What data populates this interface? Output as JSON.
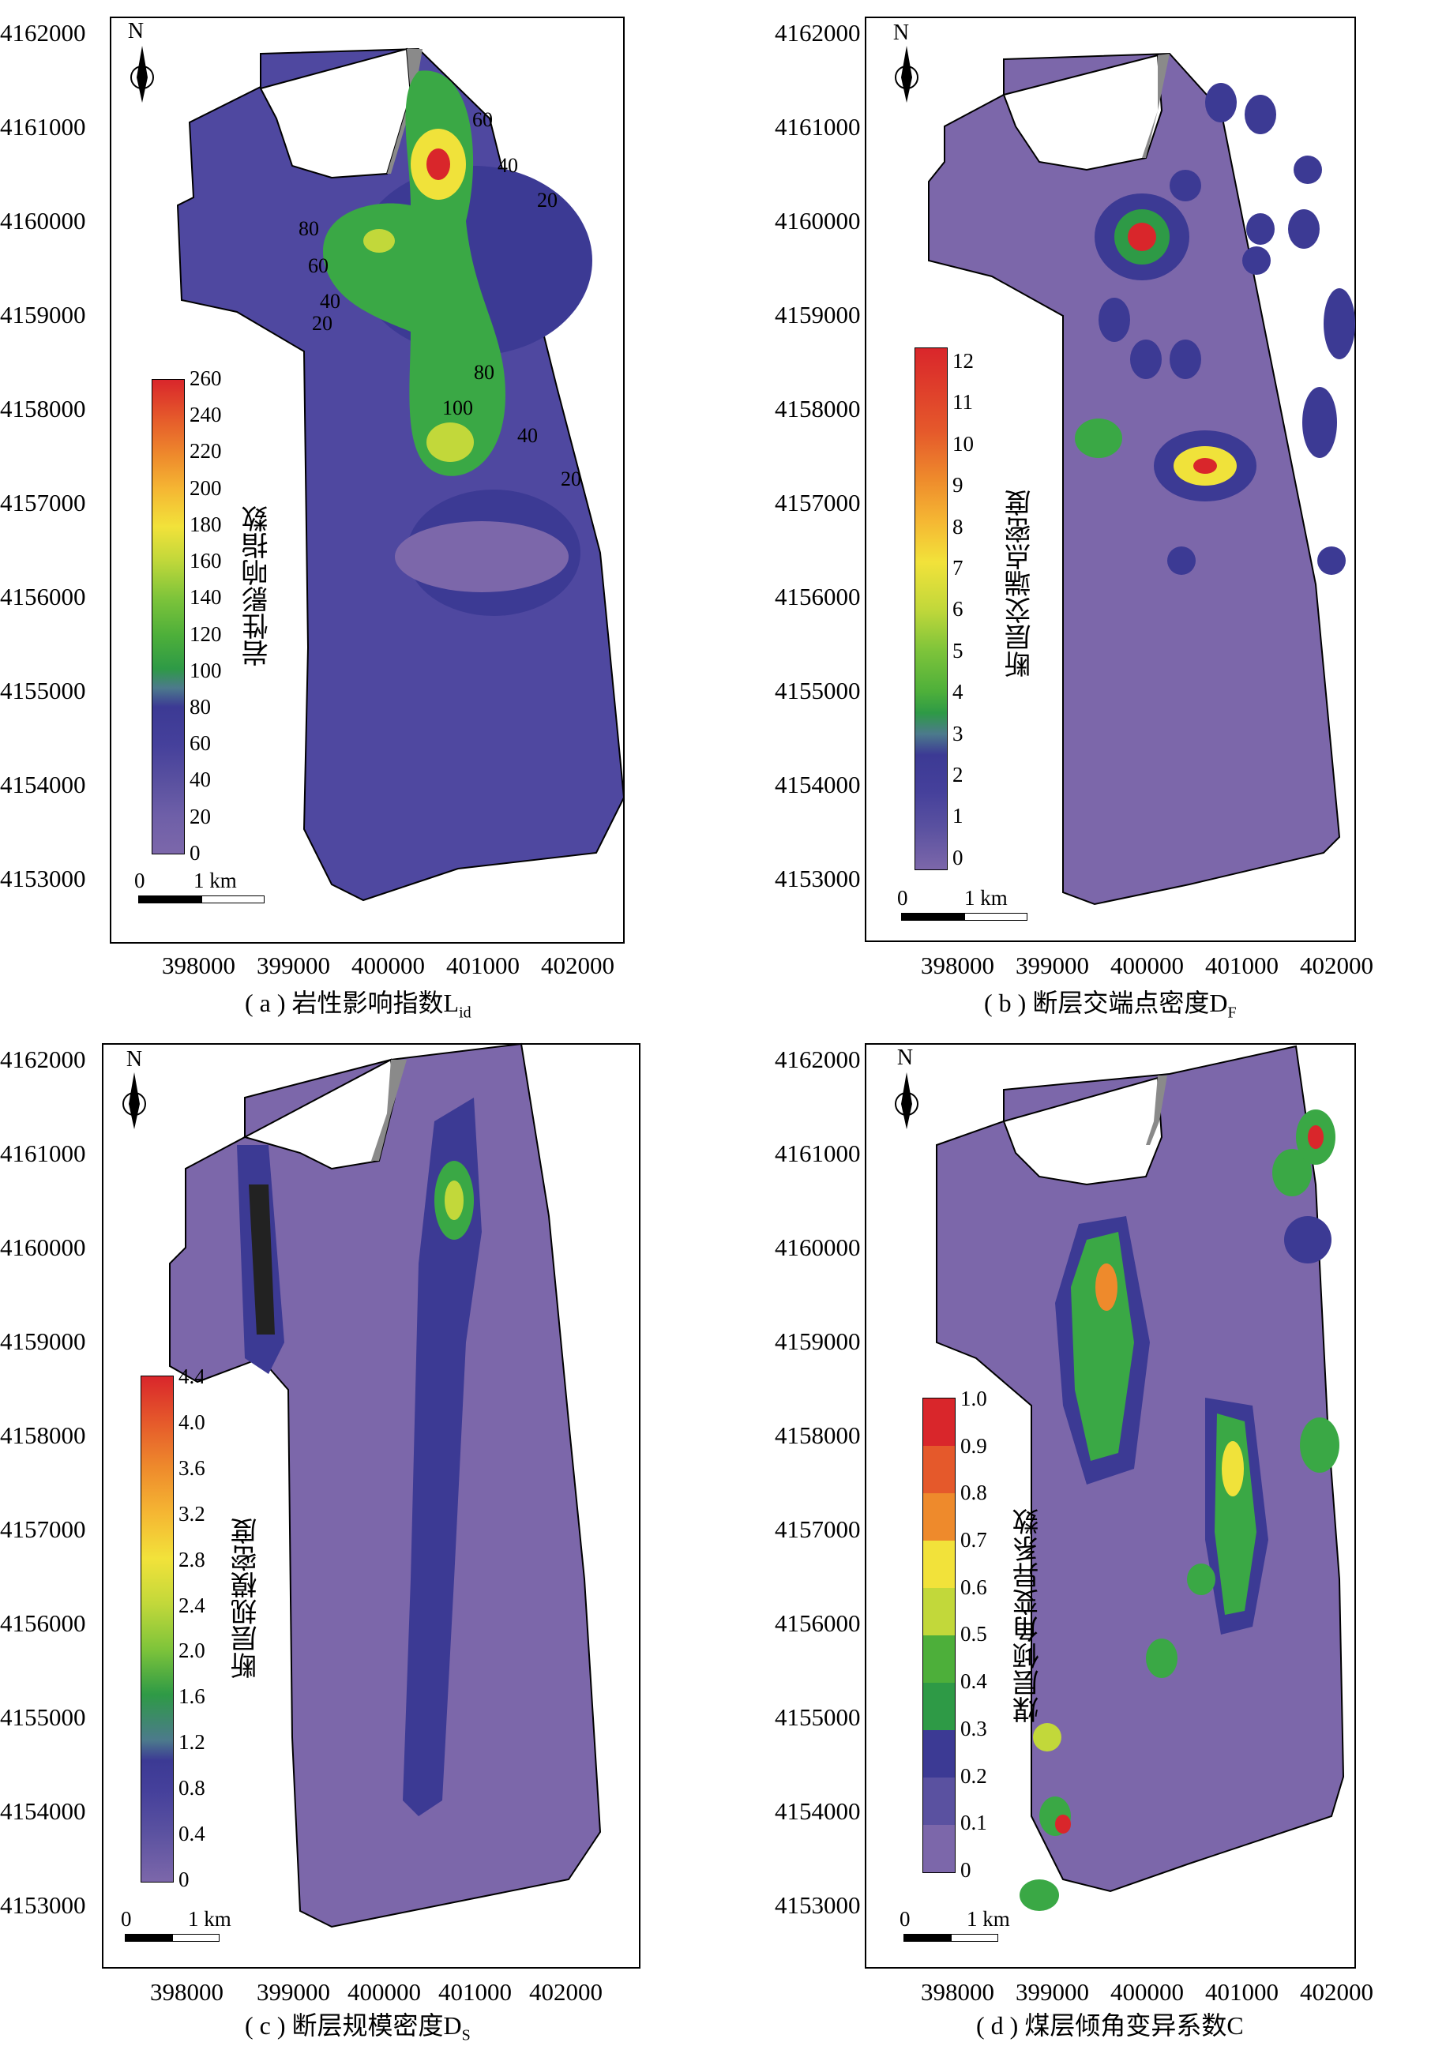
{
  "panels": [
    {
      "id": "a",
      "caption": "( a ) 岩性影响指数L",
      "caption_sub": "id",
      "legend_title": "岩性影响指数",
      "legend_ticks": [
        "260",
        "240",
        "220",
        "200",
        "180",
        "160",
        "140",
        "120",
        "100",
        "80",
        "60",
        "40",
        "20",
        "0"
      ],
      "contour_labels": [
        "60",
        "40",
        "20",
        "80",
        "60",
        "40",
        "20",
        "80",
        "100",
        "40",
        "20"
      ],
      "colors": [
        "#7c67aa",
        "#6e5fa8",
        "#5a51a0",
        "#4f48a0",
        "#45409b",
        "#3c3a94",
        "#4c7a8c",
        "#2e9a46",
        "#4daf3a",
        "#7ec43a",
        "#c2d83a",
        "#f2e23a",
        "#f5b633",
        "#ee8a2c",
        "#e5592b",
        "#d9262b"
      ]
    },
    {
      "id": "b",
      "caption": "( b ) 断层交端点密度D",
      "caption_sub": "F",
      "legend_title": "断层交端点密度",
      "legend_ticks": [
        "12",
        "11",
        "10",
        "9",
        "8",
        "7",
        "6",
        "5",
        "4",
        "3",
        "2",
        "1",
        "0"
      ]
    },
    {
      "id": "c",
      "caption": "( c ) 断层规模密度D",
      "caption_sub": "S",
      "legend_title": "断层规模密度",
      "legend_ticks": [
        "4.4",
        "4.0",
        "3.6",
        "3.2",
        "2.8",
        "2.4",
        "2.0",
        "1.6",
        "1.2",
        "0.8",
        "0.4",
        "0"
      ]
    },
    {
      "id": "d",
      "caption": "( d ) 煤层倾角变异系数C",
      "caption_sub": "",
      "legend_title": "煤层倾角变异系数",
      "legend_ticks": [
        "1.0",
        "0.9",
        "0.8",
        "0.7",
        "0.6",
        "0.5",
        "0.4",
        "0.3",
        "0.2",
        "0.1",
        "0"
      ]
    }
  ],
  "y_ticks": [
    "4162000",
    "4161000",
    "4160000",
    "4159000",
    "4158000",
    "4157000",
    "4156000",
    "4155000",
    "4154000",
    "4153000"
  ],
  "x_ticks": [
    "398000",
    "399000",
    "400000",
    "401000",
    "402000"
  ],
  "north_label": "N",
  "scale_bar": {
    "start": "0",
    "end": "1 km"
  },
  "colors": {
    "base": "#7c67aa",
    "low": "#4f48a0",
    "mid": "#3c3a94",
    "green": "#3aa845",
    "yellow": "#f0e23a",
    "orange": "#ee8a2c",
    "red": "#d9262b",
    "lake": "#8a8a8a"
  }
}
